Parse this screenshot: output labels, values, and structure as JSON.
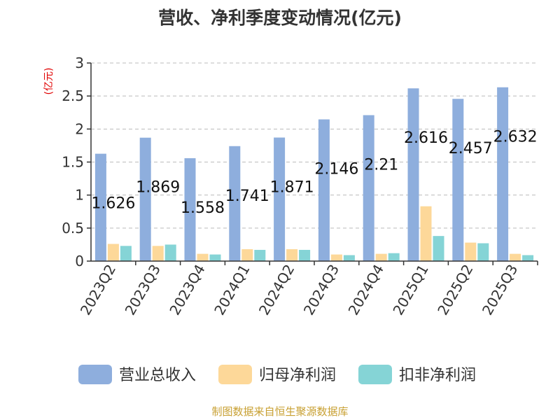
{
  "title": "营收、净利季度变动情况(亿元)",
  "source": "制图数据来自恒生聚源数据库",
  "colors": {
    "revenue": "#8eaedd",
    "parent_net_profit": "#fdd899",
    "deducted_net_profit": "#85d4d6"
  },
  "chart_data": {
    "type": "bar",
    "title": "营收、净利季度变动情况(亿元)",
    "ylabel": "(亿元)",
    "xlabel": "",
    "ylim": [
      0,
      3
    ],
    "yticks": [
      "0",
      "0.5",
      "1",
      "1.5",
      "2",
      "2.5",
      "3"
    ],
    "grid": true,
    "legend_position": "bottom",
    "categories": [
      "2023Q2",
      "2023Q3",
      "2023Q4",
      "2024Q1",
      "2024Q2",
      "2024Q3",
      "2024Q4",
      "2025Q1",
      "2025Q2",
      "2025Q3"
    ],
    "series": [
      {
        "name": "营业总收入",
        "values": [
          1.626,
          1.869,
          1.558,
          1.741,
          1.871,
          2.146,
          2.21,
          2.616,
          2.457,
          2.632
        ],
        "labels": [
          "1.626",
          "1.869",
          "1.558",
          "1.741",
          "1.871",
          "2.146",
          "2.21",
          "2.616",
          "2.457",
          "2.632"
        ]
      },
      {
        "name": "归母净利润",
        "values": [
          0.26,
          0.23,
          0.11,
          0.18,
          0.18,
          0.1,
          0.11,
          0.83,
          0.28,
          0.11
        ]
      },
      {
        "name": "扣非净利润",
        "values": [
          0.23,
          0.25,
          0.1,
          0.17,
          0.17,
          0.09,
          0.12,
          0.38,
          0.27,
          0.09
        ]
      }
    ]
  }
}
